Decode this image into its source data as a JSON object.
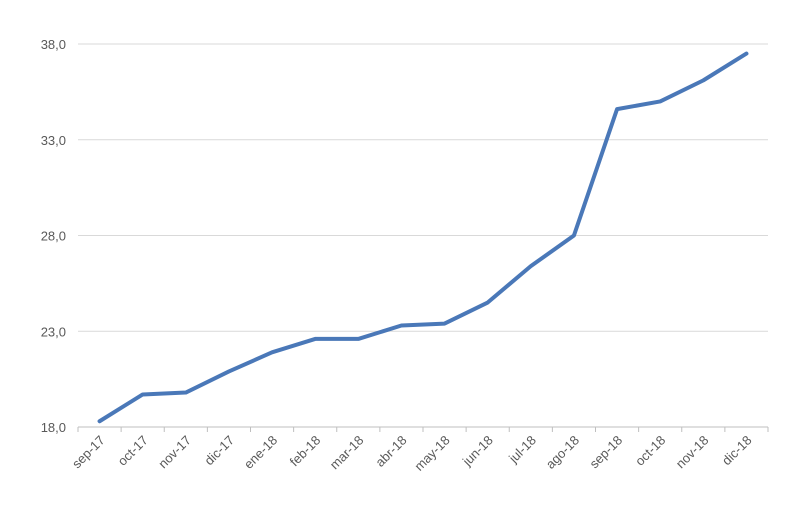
{
  "chart_data": {
    "type": "line",
    "categories": [
      "sep-17",
      "oct-17",
      "nov-17",
      "dic-17",
      "ene-18",
      "feb-18",
      "mar-18",
      "abr-18",
      "may-18",
      "jun-18",
      "jul-18",
      "ago-18",
      "sep-18",
      "oct-18",
      "nov-18",
      "dic-18"
    ],
    "values": [
      18.3,
      19.7,
      19.8,
      20.9,
      21.9,
      22.6,
      22.6,
      23.3,
      23.4,
      24.5,
      26.4,
      28.0,
      34.6,
      35.0,
      36.1,
      37.5
    ],
    "color": "#4a78b8",
    "ylim": [
      18,
      38
    ],
    "yticks": [
      {
        "value": 18,
        "label": "18,0"
      },
      {
        "value": 23,
        "label": "23,0"
      },
      {
        "value": 28,
        "label": "28,0"
      },
      {
        "value": 33,
        "label": "33,0"
      },
      {
        "value": 38,
        "label": "38,0"
      }
    ],
    "grid": true
  }
}
